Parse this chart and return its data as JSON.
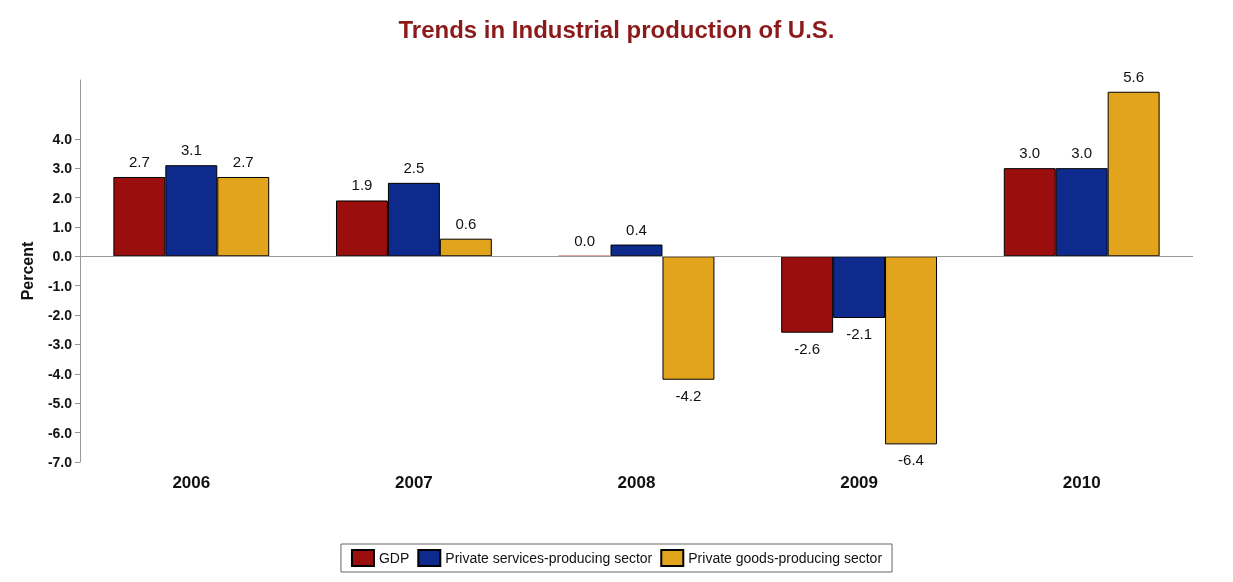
{
  "chart_data": {
    "type": "bar",
    "title": "Trends in Industrial production of U.S.",
    "ylabel": "Percent",
    "categories": [
      "2006",
      "2007",
      "2008",
      "2009",
      "2010"
    ],
    "series": [
      {
        "name": "GDP",
        "color": "#9b0e0e",
        "values": [
          2.7,
          1.9,
          0.0,
          -2.6,
          3.0
        ],
        "value_labels": [
          "2.7",
          "1.9",
          "0.0",
          "-2.6",
          "3.0"
        ]
      },
      {
        "name": "Private services-producing sector",
        "color": "#0d2a8c",
        "values": [
          3.1,
          2.5,
          0.4,
          -2.1,
          3.0
        ],
        "value_labels": [
          "3.1",
          "2.5",
          "0.4",
          "-2.1",
          "3.0"
        ]
      },
      {
        "name": "Private goods-producing sector",
        "color": "#e2a41c",
        "values": [
          2.7,
          0.6,
          -4.2,
          -6.4,
          5.6
        ],
        "value_labels": [
          "2.7",
          "0.6",
          "-4.2",
          "-6.4",
          "5.6"
        ]
      }
    ],
    "ylim": [
      -7,
      6
    ],
    "yticks": [
      {
        "value": -7,
        "label": "-7.0"
      },
      {
        "value": -6,
        "label": "-6.0"
      },
      {
        "value": -5,
        "label": "-5.0"
      },
      {
        "value": -4,
        "label": "-4.0"
      },
      {
        "value": -3,
        "label": "-3.0"
      },
      {
        "value": -2,
        "label": "-2.0"
      },
      {
        "value": -1,
        "label": "-1.0"
      },
      {
        "value": 0,
        "label": "0.0"
      },
      {
        "value": 1,
        "label": "1.0"
      },
      {
        "value": 2,
        "label": "2.0"
      },
      {
        "value": 3,
        "label": "3.0"
      },
      {
        "value": 4,
        "label": "4.0"
      }
    ],
    "ref_lines": [
      {
        "axis": "y",
        "value": 0,
        "color": "#999999"
      }
    ],
    "grid": false,
    "legend": "bottom"
  }
}
